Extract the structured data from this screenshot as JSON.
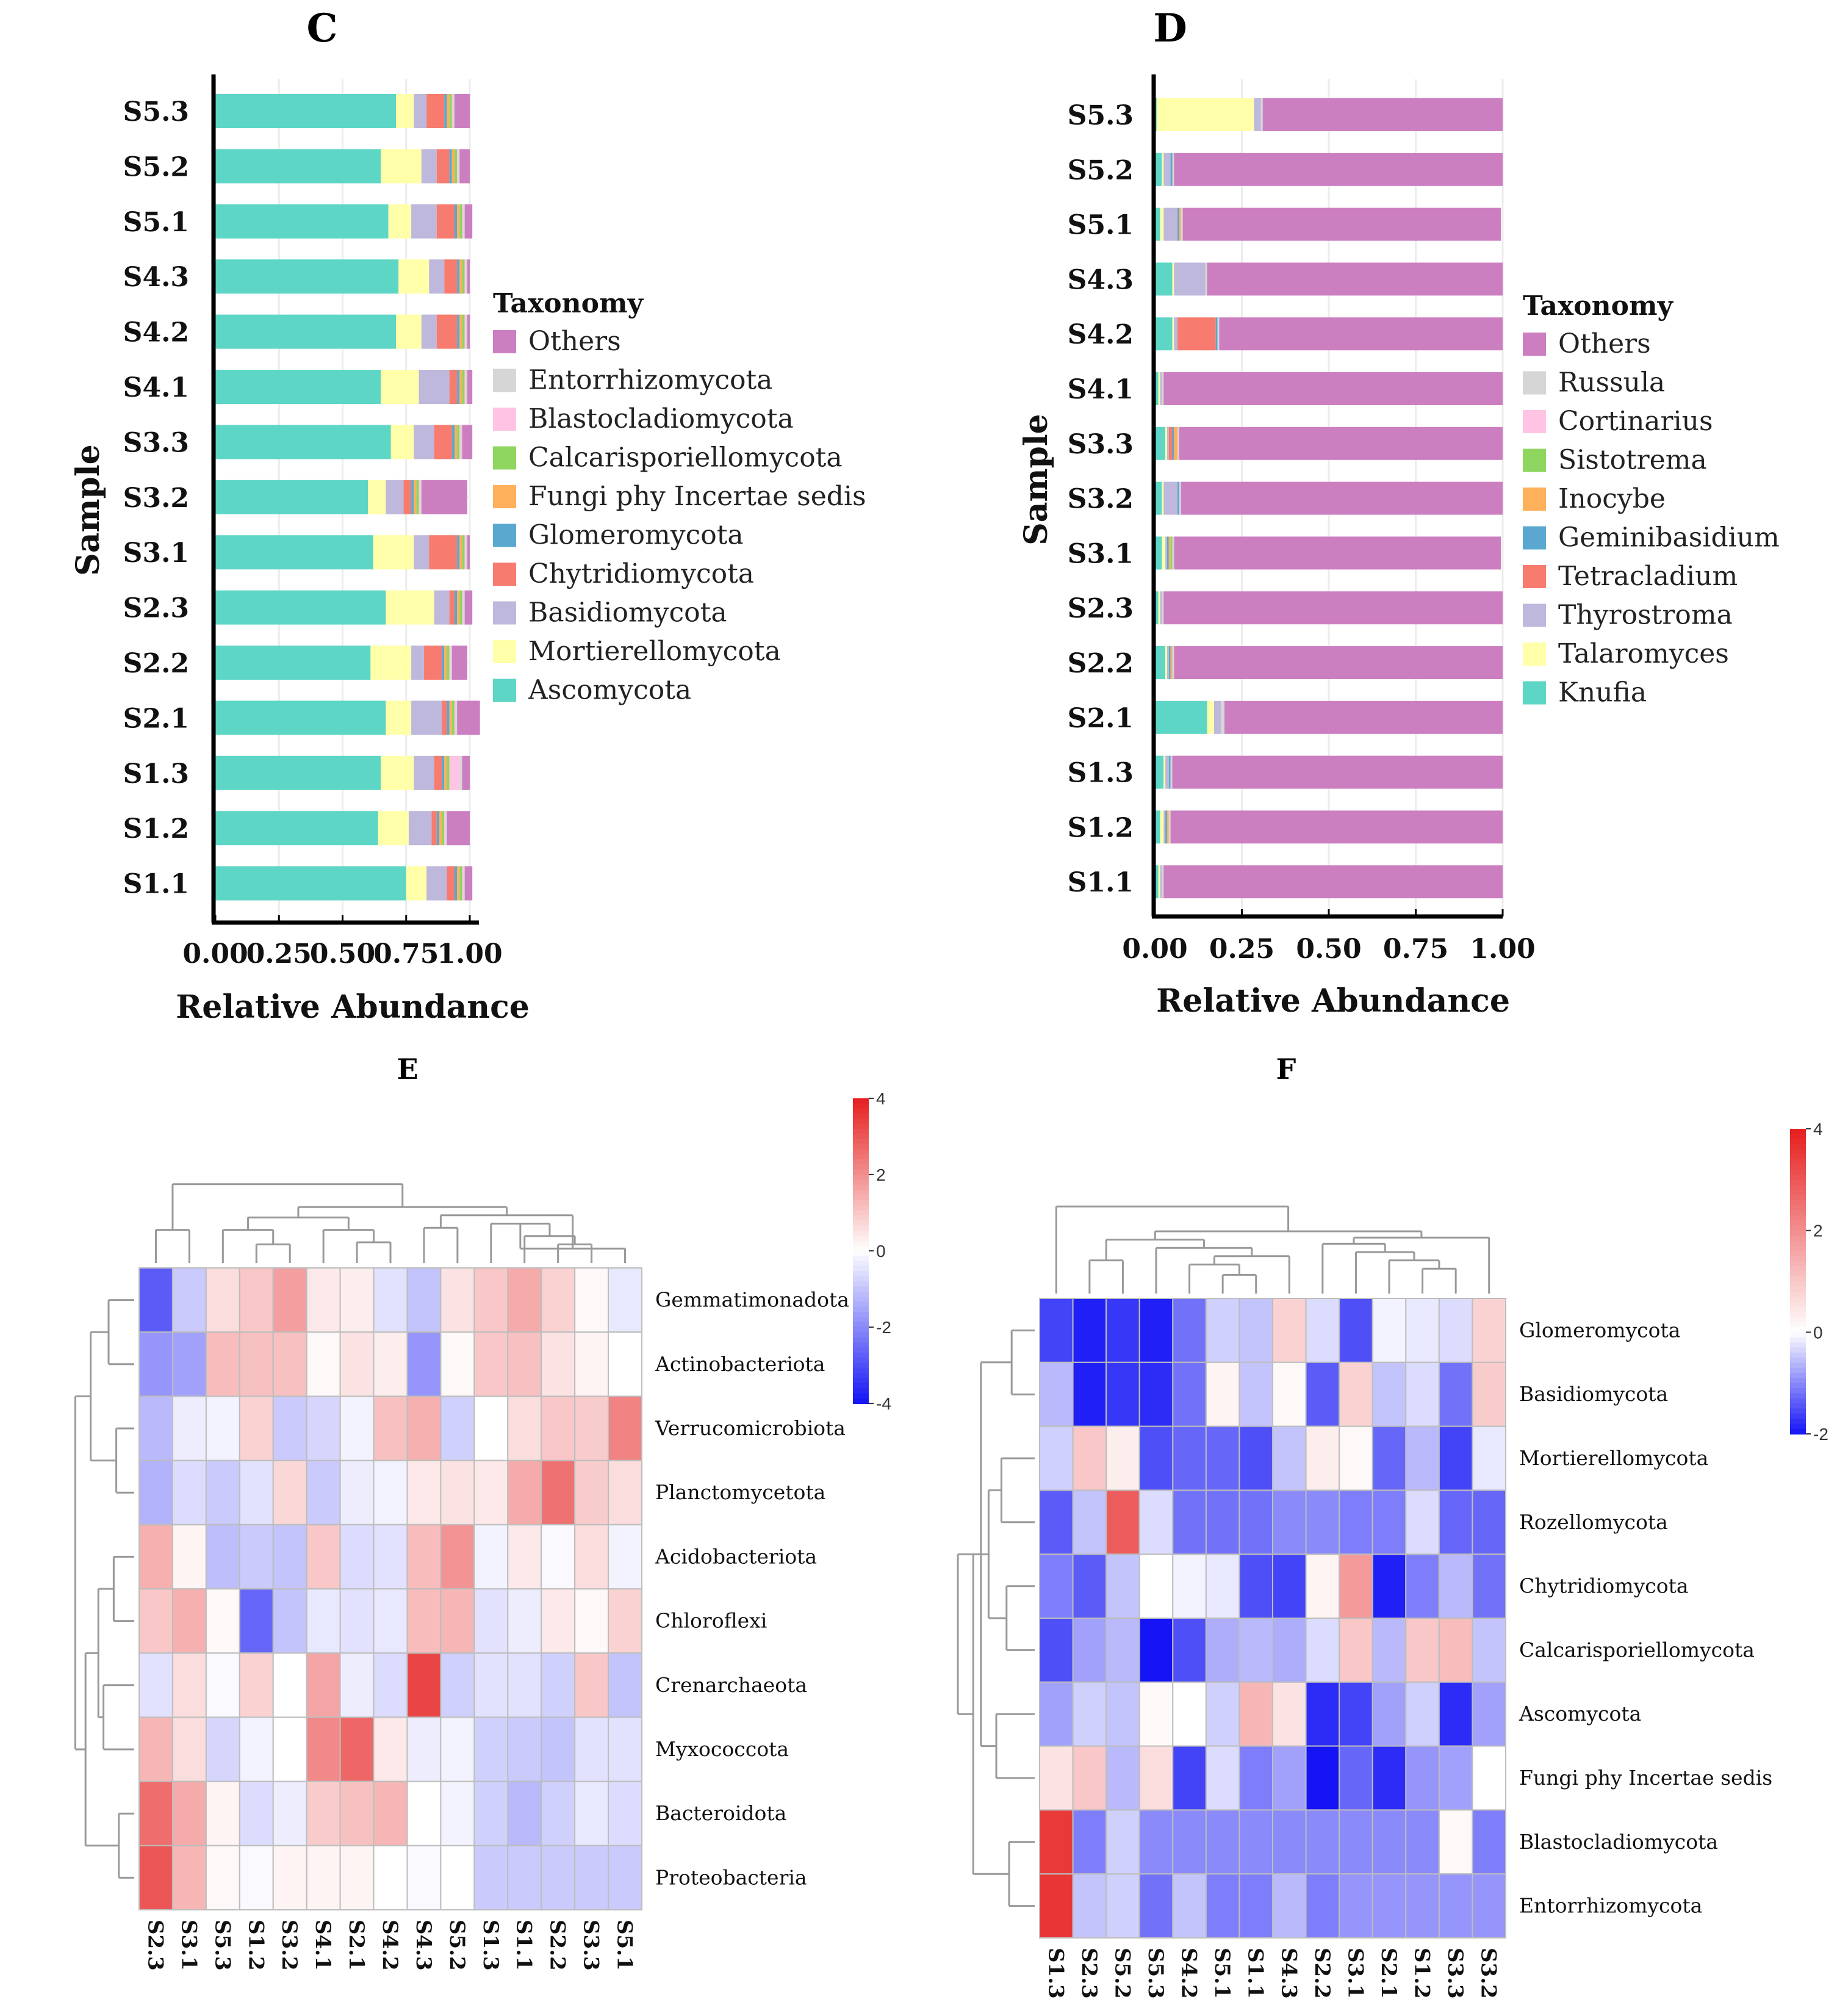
{
  "panels": {
    "C": {
      "letter": "C",
      "type": "stacked-bar-horizontal",
      "ylabel": "Sample",
      "xlabel": "Relative Abundance",
      "xticks": [
        "0.00",
        "0.25",
        "0.50",
        "0.75",
        "1.00"
      ],
      "legend_title": "Taxonomy",
      "taxa": [
        {
          "name": "Others",
          "color": "#cc7fc0"
        },
        {
          "name": "Entorrhizomycota",
          "color": "#d6d6d6"
        },
        {
          "name": "Blastocladiomycota",
          "color": "#ffc4e4"
        },
        {
          "name": "Calcarisporiellomycota",
          "color": "#8fd660"
        },
        {
          "name": "Fungi phy Incertae sedis",
          "color": "#ffb05a"
        },
        {
          "name": "Glomeromycota",
          "color": "#5aa8cf"
        },
        {
          "name": "Chytridiomycota",
          "color": "#f77b6e"
        },
        {
          "name": "Basidiomycota",
          "color": "#bdb8dc"
        },
        {
          "name": "Mortierellomycota",
          "color": "#ffffaa"
        },
        {
          "name": "Ascomycota",
          "color": "#5dd6c6"
        }
      ]
    },
    "D": {
      "letter": "D",
      "type": "stacked-bar-horizontal",
      "ylabel": "Sample",
      "xlabel": "Relative Abundance",
      "xticks": [
        "0.00",
        "0.25",
        "0.50",
        "0.75",
        "1.00"
      ],
      "legend_title": "Taxonomy",
      "taxa": [
        {
          "name": "Others",
          "color": "#cc7fc0"
        },
        {
          "name": "Russula",
          "color": "#d6d6d6"
        },
        {
          "name": "Cortinarius",
          "color": "#ffc4e4"
        },
        {
          "name": "Sistotrema",
          "color": "#8fd660"
        },
        {
          "name": "Inocybe",
          "color": "#ffb05a"
        },
        {
          "name": "Geminibasidium",
          "color": "#5aa8cf"
        },
        {
          "name": "Tetracladium",
          "color": "#f77b6e"
        },
        {
          "name": "Thyrostroma",
          "color": "#bdb8dc"
        },
        {
          "name": "Talaromyces",
          "color": "#ffffaa"
        },
        {
          "name": "Knufia",
          "color": "#5dd6c6"
        }
      ]
    },
    "E": {
      "letter": "E",
      "type": "heatmap",
      "colorbar_ticks": [
        "4",
        "2",
        "0",
        "-2",
        "-4"
      ],
      "columns": [
        "S2.3",
        "S3.1",
        "S5.3",
        "S1.2",
        "S3.2",
        "S4.1",
        "S2.1",
        "S4.2",
        "S4.3",
        "S5.2",
        "S1.3",
        "S1.1",
        "S2.2",
        "S3.3",
        "S5.1"
      ],
      "rows": [
        "Gemmatimonadota",
        "Actinobacteriota",
        "Verrucomicrobiota",
        "Planctomycetota",
        "Acidobacteriota",
        "Chloroflexi",
        "Crenarchaeota",
        "Myxococcota",
        "Bacteroidota",
        "Proteobacteria"
      ]
    },
    "F": {
      "letter": "F",
      "type": "heatmap",
      "colorbar_ticks": [
        "4",
        "2",
        "0",
        "-2"
      ],
      "columns": [
        "S1.3",
        "S2.3",
        "S5.2",
        "S5.3",
        "S4.2",
        "S5.1",
        "S1.1",
        "S4.3",
        "S2.2",
        "S3.1",
        "S2.1",
        "S1.2",
        "S3.3",
        "S3.2"
      ],
      "rows": [
        "Glomeromycota",
        "Basidiomycota",
        "Mortierellomycota",
        "Rozellomycota",
        "Chytridiomycota",
        "Calcarisporiellomycota",
        "Ascomycota",
        "Fungi phy Incertae sedis",
        "Blastocladiomycota",
        "Entorrhizomycota"
      ]
    }
  },
  "chart_data": [
    {
      "type": "bar",
      "orientation": "horizontal",
      "stacked": true,
      "title": "",
      "xlabel": "Relative Abundance",
      "ylabel": "Sample",
      "xlim": [
        0,
        1
      ],
      "categories": [
        "S5.3",
        "S5.2",
        "S5.1",
        "S4.3",
        "S4.2",
        "S4.1",
        "S3.3",
        "S3.2",
        "S3.1",
        "S2.3",
        "S2.2",
        "S2.1",
        "S1.3",
        "S1.2",
        "S1.1"
      ],
      "series": [
        {
          "name": "Ascomycota",
          "values": [
            0.71,
            0.65,
            0.68,
            0.72,
            0.71,
            0.65,
            0.69,
            0.6,
            0.62,
            0.67,
            0.61,
            0.67,
            0.65,
            0.64,
            0.75
          ]
        },
        {
          "name": "Mortierellomycota",
          "values": [
            0.07,
            0.16,
            0.09,
            0.12,
            0.1,
            0.15,
            0.09,
            0.07,
            0.16,
            0.19,
            0.16,
            0.1,
            0.13,
            0.12,
            0.08
          ]
        },
        {
          "name": "Basidiomycota",
          "values": [
            0.05,
            0.06,
            0.1,
            0.06,
            0.06,
            0.12,
            0.08,
            0.07,
            0.06,
            0.06,
            0.05,
            0.12,
            0.08,
            0.09,
            0.08
          ]
        },
        {
          "name": "Chytridiomycota",
          "values": [
            0.07,
            0.05,
            0.07,
            0.05,
            0.08,
            0.03,
            0.07,
            0.03,
            0.11,
            0.02,
            0.07,
            0.02,
            0.03,
            0.02,
            0.03
          ]
        },
        {
          "name": "Glomeromycota",
          "values": [
            0.01,
            0.01,
            0.01,
            0.01,
            0.01,
            0.01,
            0.01,
            0.01,
            0.01,
            0.01,
            0.01,
            0.01,
            0.01,
            0.01,
            0.01
          ]
        },
        {
          "name": "Fungi phy Incertae sedis",
          "values": [
            0.01,
            0.01,
            0.01,
            0.01,
            0.01,
            0.01,
            0.01,
            0.01,
            0.01,
            0.01,
            0.01,
            0.01,
            0.01,
            0.01,
            0.01
          ]
        },
        {
          "name": "Calcarisporiellomycota",
          "values": [
            0.01,
            0.01,
            0.01,
            0.01,
            0.01,
            0.01,
            0.01,
            0.01,
            0.01,
            0.01,
            0.01,
            0.01,
            0.01,
            0.01,
            0.01
          ]
        },
        {
          "name": "Blastocladiomycota",
          "values": [
            0.005,
            0.005,
            0.005,
            0.005,
            0.005,
            0.005,
            0.005,
            0.005,
            0.005,
            0.005,
            0.005,
            0.005,
            0.04,
            0.005,
            0.005
          ]
        },
        {
          "name": "Entorrhizomycota",
          "values": [
            0.005,
            0.005,
            0.005,
            0.005,
            0.005,
            0.005,
            0.005,
            0.005,
            0.005,
            0.005,
            0.005,
            0.005,
            0.01,
            0.005,
            0.005
          ]
        },
        {
          "name": "Others",
          "values": [
            0.06,
            0.04,
            0.03,
            0.01,
            0.01,
            0.02,
            0.04,
            0.18,
            0.01,
            0.03,
            0.06,
            0.09,
            0.03,
            0.09,
            0.03
          ]
        }
      ]
    },
    {
      "type": "bar",
      "orientation": "horizontal",
      "stacked": true,
      "title": "",
      "xlabel": "Relative Abundance",
      "ylabel": "Sample",
      "xlim": [
        0,
        1
      ],
      "categories": [
        "S5.3",
        "S5.2",
        "S5.1",
        "S4.3",
        "S4.2",
        "S4.1",
        "S3.3",
        "S3.2",
        "S3.1",
        "S2.3",
        "S2.2",
        "S2.1",
        "S1.3",
        "S1.2",
        "S1.1"
      ],
      "series": [
        {
          "name": "Knufia",
          "values": [
            0.005,
            0.02,
            0.015,
            0.05,
            0.05,
            0.01,
            0.03,
            0.02,
            0.02,
            0.01,
            0.03,
            0.15,
            0.025,
            0.015,
            0.01
          ]
        },
        {
          "name": "Talaromyces",
          "values": [
            0.28,
            0.005,
            0.01,
            0.005,
            0.005,
            0.005,
            0.005,
            0.005,
            0.01,
            0.005,
            0.005,
            0.02,
            0.005,
            0.01,
            0.005
          ]
        },
        {
          "name": "Thyrostroma",
          "values": [
            0.02,
            0.02,
            0.04,
            0.09,
            0.01,
            0.005,
            0.005,
            0.04,
            0.005,
            0.005,
            0.005,
            0.02,
            0.01,
            0.005,
            0.005
          ]
        },
        {
          "name": "Tetracladium",
          "values": [
            0.0,
            0.0,
            0.0,
            0.0,
            0.11,
            0.0,
            0.01,
            0.0,
            0.0,
            0.0,
            0.0,
            0.0,
            0.0,
            0.0,
            0.0
          ]
        },
        {
          "name": "Geminibasidium",
          "values": [
            0.0,
            0.005,
            0.005,
            0.0,
            0.005,
            0.0,
            0.005,
            0.005,
            0.005,
            0.0,
            0.005,
            0.0,
            0.005,
            0.005,
            0.0
          ]
        },
        {
          "name": "Inocybe",
          "values": [
            0.0,
            0.0,
            0.005,
            0.0,
            0.0,
            0.0,
            0.01,
            0.0,
            0.005,
            0.0,
            0.005,
            0.0,
            0.0,
            0.005,
            0.0
          ]
        },
        {
          "name": "Sistotrema",
          "values": [
            0.0,
            0.0,
            0.0,
            0.0,
            0.0,
            0.0,
            0.0,
            0.0,
            0.005,
            0.0,
            0.0,
            0.0,
            0.0,
            0.0,
            0.0
          ]
        },
        {
          "name": "Cortinarius",
          "values": [
            0.0,
            0.0,
            0.0,
            0.0,
            0.0,
            0.0,
            0.0,
            0.0,
            0.0,
            0.0,
            0.0,
            0.0,
            0.0,
            0.0,
            0.0
          ]
        },
        {
          "name": "Russula",
          "values": [
            0.005,
            0.005,
            0.005,
            0.005,
            0.005,
            0.005,
            0.005,
            0.005,
            0.005,
            0.005,
            0.005,
            0.01,
            0.005,
            0.005,
            0.005
          ]
        },
        {
          "name": "Others",
          "values": [
            0.69,
            0.945,
            0.915,
            0.85,
            0.815,
            0.975,
            0.93,
            0.925,
            0.94,
            0.975,
            0.945,
            0.8,
            0.95,
            0.955,
            0.975
          ]
        }
      ]
    },
    {
      "type": "heatmap",
      "title": "",
      "colorbar": [
        -4,
        4
      ],
      "x": [
        "S2.3",
        "S3.1",
        "S5.3",
        "S1.2",
        "S3.2",
        "S4.1",
        "S2.1",
        "S4.2",
        "S4.3",
        "S5.2",
        "S1.3",
        "S1.1",
        "S2.2",
        "S3.3",
        "S5.1"
      ],
      "y": [
        "Gemmatimonadota",
        "Actinobacteriota",
        "Verrucomicrobiota",
        "Planctomycetota",
        "Acidobacteriota",
        "Chloroflexi",
        "Crenarchaeota",
        "Myxococcota",
        "Bacteroidota",
        "Proteobacteria"
      ],
      "values": [
        [
          -2.8,
          -0.9,
          0.6,
          1.0,
          1.7,
          0.4,
          0.3,
          -0.5,
          -1.0,
          0.5,
          1.0,
          1.5,
          0.8,
          0.1,
          -0.4
        ],
        [
          -1.8,
          -1.6,
          1.2,
          1.1,
          1.1,
          0.1,
          0.5,
          0.3,
          -1.8,
          0.1,
          1.0,
          1.1,
          0.5,
          0.2,
          0.0
        ],
        [
          -1.2,
          -0.3,
          -0.2,
          0.8,
          -0.9,
          -0.7,
          -0.2,
          1.1,
          1.4,
          -0.8,
          0.0,
          0.6,
          1.0,
          0.9,
          2.2
        ],
        [
          -1.3,
          -0.6,
          -0.9,
          -0.5,
          0.7,
          -0.9,
          -0.3,
          -0.2,
          0.4,
          0.5,
          0.4,
          1.5,
          2.5,
          0.9,
          0.6
        ],
        [
          1.4,
          0.2,
          -1.1,
          -0.9,
          -1.0,
          1.0,
          -0.6,
          -0.5,
          1.2,
          1.9,
          -0.2,
          0.4,
          -0.1,
          0.6,
          -0.2
        ],
        [
          1.0,
          1.4,
          0.1,
          -2.6,
          -1.0,
          -0.4,
          -0.5,
          -0.4,
          1.2,
          1.3,
          -0.5,
          -0.3,
          0.4,
          0.1,
          0.8
        ],
        [
          -0.5,
          0.6,
          -0.1,
          0.8,
          0.0,
          1.6,
          -0.3,
          -0.6,
          3.3,
          -0.8,
          -0.5,
          -0.5,
          -0.8,
          1.0,
          -1.0
        ],
        [
          1.3,
          0.6,
          -0.7,
          -0.2,
          0.0,
          2.1,
          2.7,
          0.4,
          -0.3,
          -0.2,
          -0.8,
          -0.9,
          -1.0,
          -0.5,
          -0.5
        ],
        [
          2.6,
          1.5,
          0.2,
          -0.6,
          -0.3,
          0.9,
          1.1,
          1.3,
          0.0,
          -0.2,
          -0.8,
          -1.2,
          -0.8,
          -0.4,
          -0.6
        ],
        [
          3.0,
          1.3,
          0.1,
          -0.1,
          0.2,
          0.2,
          0.2,
          0.0,
          -0.1,
          0.0,
          -0.9,
          -0.9,
          -0.9,
          -0.9,
          -0.9
        ]
      ]
    },
    {
      "type": "heatmap",
      "title": "",
      "colorbar": [
        -2,
        4
      ],
      "x": [
        "S1.3",
        "S2.3",
        "S5.2",
        "S5.3",
        "S4.2",
        "S5.1",
        "S1.1",
        "S4.3",
        "S2.2",
        "S3.1",
        "S2.1",
        "S1.2",
        "S3.3",
        "S3.2"
      ],
      "y": [
        "Glomeromycota",
        "Basidiomycota",
        "Mortierellomycota",
        "Rozellomycota",
        "Chytridiomycota",
        "Calcarisporiellomycota",
        "Ascomycota",
        "Fungi phy Incertae sedis",
        "Blastocladiomycota",
        "Entorrhizomycota"
      ],
      "values": [
        [
          -1.6,
          -1.9,
          -1.7,
          -1.9,
          -1.2,
          -0.4,
          -0.5,
          0.8,
          -0.3,
          -1.5,
          -0.1,
          -0.2,
          -0.3,
          0.8
        ],
        [
          -0.6,
          -1.9,
          -1.7,
          -1.8,
          -1.2,
          0.2,
          -0.5,
          0.1,
          -1.4,
          0.8,
          -0.5,
          -0.3,
          -1.2,
          0.9
        ],
        [
          -0.4,
          1.0,
          0.3,
          -1.5,
          -1.3,
          -1.3,
          -1.5,
          -0.5,
          0.3,
          0.1,
          -1.3,
          -0.6,
          -1.6,
          -0.2
        ],
        [
          -1.4,
          -0.5,
          2.9,
          -0.3,
          -1.2,
          -1.2,
          -1.2,
          -1.0,
          -1.0,
          -1.1,
          -1.1,
          -0.3,
          -1.3,
          -1.3
        ],
        [
          -1.1,
          -1.4,
          -0.5,
          0.0,
          -0.1,
          -0.2,
          -1.5,
          -1.6,
          0.2,
          1.8,
          -1.9,
          -1.1,
          -0.6,
          -1.2
        ],
        [
          -1.5,
          -0.8,
          -0.6,
          -2.0,
          -1.5,
          -0.7,
          -0.6,
          -0.7,
          -0.3,
          1.0,
          -0.6,
          1.0,
          1.2,
          -0.5
        ],
        [
          -0.8,
          -0.4,
          -0.5,
          0.1,
          0.0,
          -0.4,
          1.3,
          0.5,
          -1.8,
          -1.6,
          -0.8,
          -0.4,
          -1.8,
          -0.8
        ],
        [
          0.5,
          1.0,
          -0.6,
          0.6,
          -1.6,
          -0.3,
          -1.1,
          -0.8,
          -2.0,
          -1.3,
          -1.8,
          -0.9,
          -0.8,
          0.0
        ],
        [
          3.5,
          -1.1,
          -0.4,
          -1.0,
          -1.0,
          -1.0,
          -1.0,
          -1.0,
          -1.0,
          -1.0,
          -1.0,
          -1.0,
          0.1,
          -1.1
        ],
        [
          3.6,
          -0.5,
          -0.4,
          -1.2,
          -0.5,
          -1.1,
          -1.1,
          -0.6,
          -1.1,
          -0.9,
          -0.9,
          -0.9,
          -0.9,
          -0.9
        ]
      ]
    }
  ]
}
